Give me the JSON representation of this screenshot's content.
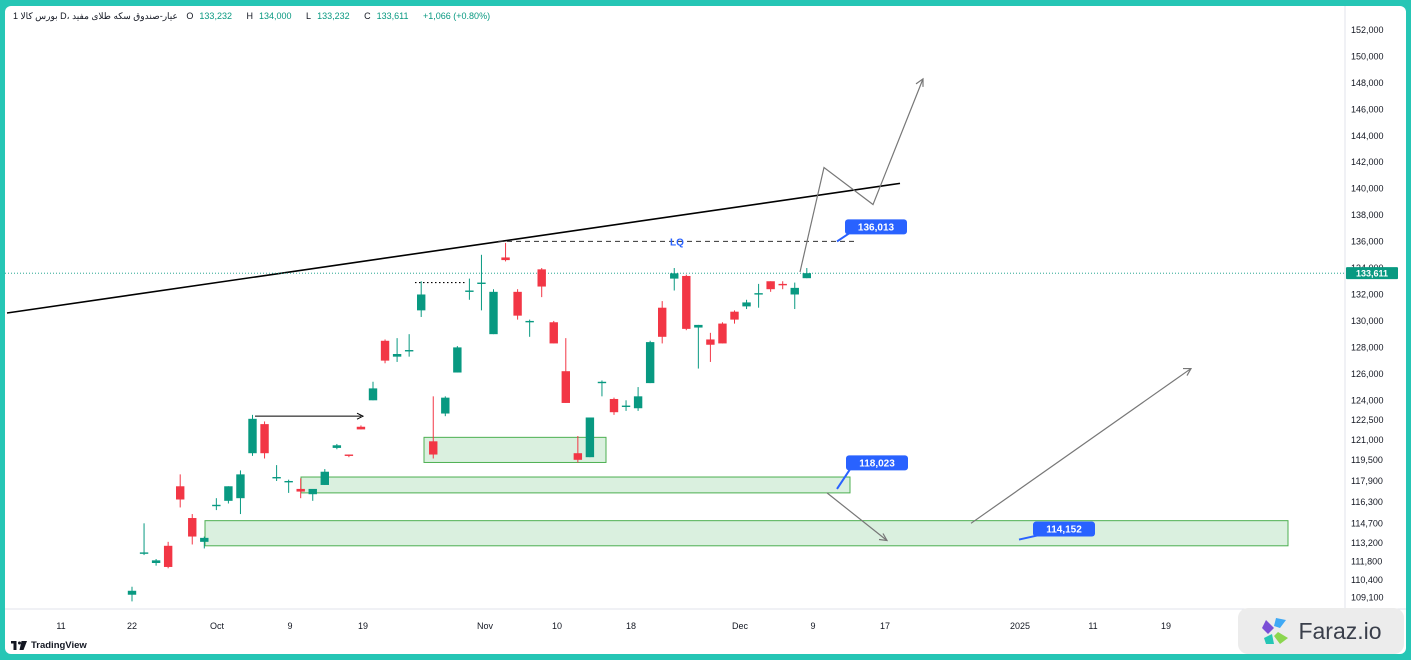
{
  "header": {
    "symbol_line": "1 بورس کالا D، عیار-صندوق سکه طلای مفید",
    "open_label": "O",
    "open": "133,232",
    "high_label": "H",
    "high": "134,000",
    "low_label": "L",
    "low": "133,232",
    "close_label": "C",
    "close": "133,611",
    "change": "+1,066 (+0.80%)"
  },
  "branding": {
    "tradingview": "TradingView",
    "faraz": "Faraz.io"
  },
  "colors": {
    "up": "#089981",
    "down": "#f23645",
    "zone_fill": "#d4edd9",
    "zone_stroke": "#4caf50",
    "label_bg": "#2962ff",
    "frame": "#26c6b5"
  },
  "chart_data": {
    "type": "candlestick",
    "title": "",
    "ylim": [
      108600,
      152600
    ],
    "y_ticks": [
      152000,
      150000,
      148000,
      146000,
      144000,
      142000,
      140000,
      138000,
      136000,
      134000,
      132000,
      130000,
      128000,
      126000,
      124000,
      122500,
      121000,
      119500,
      117900,
      116300,
      114700,
      113200,
      111800,
      110400,
      109100
    ],
    "y_tick_labels": [
      "152,000",
      "150,000",
      "148,000",
      "146,000",
      "144,000",
      "142,000",
      "140,000",
      "138,000",
      "136,000",
      "134,000",
      "132,000",
      "130,000",
      "128,000",
      "126,000",
      "124,000",
      "122,500",
      "121,000",
      "119,500",
      "117,900",
      "116,300",
      "114,700",
      "113,200",
      "111,800",
      "110,400",
      "109,100"
    ],
    "x_tick_labels": [
      "11",
      "22",
      "Oct",
      "9",
      "19",
      "Nov",
      "10",
      "18",
      "Dec",
      "9",
      "17",
      "2025",
      "11",
      "19"
    ],
    "current_price": 133611,
    "current_price_label": "133,611",
    "candles": [
      {
        "o": 109300,
        "h": 109900,
        "l": 108800,
        "c": 109600
      },
      {
        "o": 112400,
        "h": 114700,
        "l": 112300,
        "c": 112500
      },
      {
        "o": 111700,
        "h": 112000,
        "l": 111500,
        "c": 111900
      },
      {
        "o": 113000,
        "h": 113300,
        "l": 111300,
        "c": 111400
      },
      {
        "o": 117500,
        "h": 118400,
        "l": 115900,
        "c": 116500
      },
      {
        "o": 115100,
        "h": 115400,
        "l": 113100,
        "c": 113700
      },
      {
        "o": 113300,
        "h": 113700,
        "l": 112800,
        "c": 113600
      },
      {
        "o": 116000,
        "h": 116600,
        "l": 115700,
        "c": 116100
      },
      {
        "o": 116400,
        "h": 117500,
        "l": 116200,
        "c": 117500
      },
      {
        "o": 116600,
        "h": 118700,
        "l": 115400,
        "c": 118400
      },
      {
        "o": 120000,
        "h": 122900,
        "l": 119800,
        "c": 122600
      },
      {
        "o": 122200,
        "h": 122400,
        "l": 119600,
        "c": 120000
      },
      {
        "o": 118200,
        "h": 119100,
        "l": 117900,
        "c": 118200
      },
      {
        "o": 117900,
        "h": 118000,
        "l": 117000,
        "c": 117900
      },
      {
        "o": 117300,
        "h": 118100,
        "l": 116600,
        "c": 117100
      },
      {
        "o": 116900,
        "h": 117100,
        "l": 116400,
        "c": 117300
      },
      {
        "o": 117600,
        "h": 118800,
        "l": 117600,
        "c": 118600
      },
      {
        "o": 120400,
        "h": 120700,
        "l": 120300,
        "c": 120600
      },
      {
        "o": 119900,
        "h": 119900,
        "l": 119700,
        "c": 119800
      },
      {
        "o": 122000,
        "h": 122100,
        "l": 121800,
        "c": 121800
      },
      {
        "o": 124000,
        "h": 125400,
        "l": 124000,
        "c": 124900
      },
      {
        "o": 128500,
        "h": 128600,
        "l": 126800,
        "c": 127000
      },
      {
        "o": 127300,
        "h": 128700,
        "l": 126900,
        "c": 127500
      },
      {
        "o": 127800,
        "h": 129000,
        "l": 127300,
        "c": 127800
      },
      {
        "o": 130800,
        "h": 133000,
        "l": 130300,
        "c": 132000
      },
      {
        "o": 120900,
        "h": 124300,
        "l": 119600,
        "c": 119900
      },
      {
        "o": 123000,
        "h": 124300,
        "l": 122800,
        "c": 124200
      },
      {
        "o": 126100,
        "h": 128100,
        "l": 126100,
        "c": 128000
      },
      {
        "o": 132200,
        "h": 133200,
        "l": 131600,
        "c": 132300
      },
      {
        "o": 132900,
        "h": 135000,
        "l": 130800,
        "c": 132900
      },
      {
        "o": 129000,
        "h": 132400,
        "l": 129000,
        "c": 132200
      },
      {
        "o": 134800,
        "h": 135900,
        "l": 134500,
        "c": 134600
      },
      {
        "o": 132200,
        "h": 132400,
        "l": 130100,
        "c": 130400
      },
      {
        "o": 130000,
        "h": 130100,
        "l": 128800,
        "c": 130000
      },
      {
        "o": 133900,
        "h": 134000,
        "l": 131800,
        "c": 132600
      },
      {
        "o": 129900,
        "h": 130000,
        "l": 128300,
        "c": 128300
      },
      {
        "o": 126200,
        "h": 128700,
        "l": 123800,
        "c": 123800
      },
      {
        "o": 120000,
        "h": 121300,
        "l": 119300,
        "c": 119500
      },
      {
        "o": 119700,
        "h": 122700,
        "l": 119700,
        "c": 122700
      },
      {
        "o": 125400,
        "h": 125500,
        "l": 124300,
        "c": 125400
      },
      {
        "o": 124100,
        "h": 124200,
        "l": 122900,
        "c": 123100
      },
      {
        "o": 123600,
        "h": 124000,
        "l": 123200,
        "c": 123600
      },
      {
        "o": 123400,
        "h": 125000,
        "l": 123200,
        "c": 124300
      },
      {
        "o": 125300,
        "h": 128500,
        "l": 125300,
        "c": 128400
      },
      {
        "o": 131000,
        "h": 131500,
        "l": 128300,
        "c": 128800
      },
      {
        "o": 133200,
        "h": 134000,
        "l": 132300,
        "c": 133600
      },
      {
        "o": 133400,
        "h": 133500,
        "l": 129300,
        "c": 129400
      },
      {
        "o": 129500,
        "h": 129700,
        "l": 126400,
        "c": 129700
      },
      {
        "o": 128600,
        "h": 129100,
        "l": 126900,
        "c": 128200
      },
      {
        "o": 129800,
        "h": 129900,
        "l": 128300,
        "c": 128300
      },
      {
        "o": 130700,
        "h": 130800,
        "l": 129800,
        "c": 130100
      },
      {
        "o": 131100,
        "h": 131600,
        "l": 130900,
        "c": 131400
      },
      {
        "o": 132000,
        "h": 132800,
        "l": 131000,
        "c": 132100
      },
      {
        "o": 133000,
        "h": 133000,
        "l": 132200,
        "c": 132400
      },
      {
        "o": 132800,
        "h": 133000,
        "l": 132400,
        "c": 132700
      },
      {
        "o": 132000,
        "h": 132900,
        "l": 130900,
        "c": 132500
      },
      {
        "o": 133232,
        "h": 134000,
        "l": 133232,
        "c": 133611
      }
    ],
    "annotations": {
      "labels": [
        "136,013",
        "118,023",
        "114,152"
      ],
      "lq_text": "LQ",
      "lq_level": 136013,
      "zones": [
        {
          "name": "upper-zone",
          "from": 119300,
          "to": 121200
        },
        {
          "name": "middle-zone",
          "from": 117000,
          "to": 118200
        },
        {
          "name": "lower-zone",
          "from": 113000,
          "to": 114900
        }
      ]
    }
  }
}
